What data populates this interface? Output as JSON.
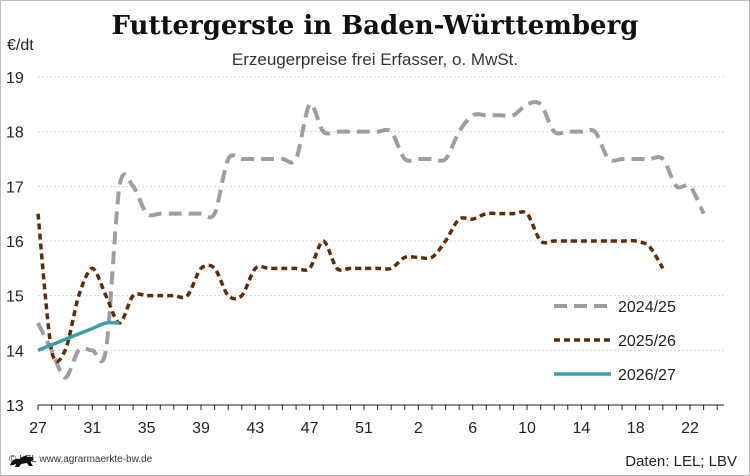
{
  "title": "Futtergerste in Baden-Württemberg",
  "subtitle": "Erzeugerpreise frei Erfasser, o. MwSt.",
  "unit": "€/dt",
  "footer": {
    "source_left": "© LEL www.agrarmaerkte-bw.de",
    "source_right": "Daten: LEL; LBV"
  },
  "colors": {
    "series_2024_25": "#9e9e9e",
    "series_2025_26": "#5c2e0a",
    "series_2026_27": "#3a9faa"
  },
  "chart_data": {
    "type": "line",
    "title": "Futtergerste in Baden-Württemberg",
    "subtitle": "Erzeugerpreise frei Erfasser, o. MwSt.",
    "ylabel": "€/dt",
    "ylim": [
      13,
      19
    ],
    "yticks": [
      13,
      14,
      15,
      16,
      17,
      18,
      19
    ],
    "x_tick_labels": [
      "27",
      "31",
      "35",
      "39",
      "43",
      "47",
      "51",
      "2",
      "6",
      "10",
      "14",
      "18",
      "22"
    ],
    "x_tick_positions": [
      0,
      4,
      8,
      12,
      16,
      20,
      24,
      28,
      32,
      36,
      40,
      44,
      48
    ],
    "xlim": [
      0,
      50.5
    ],
    "grid": true,
    "legend_position": "bottom-right",
    "series": [
      {
        "name": "2024/25",
        "style": "long-dash",
        "points": [
          [
            0,
            14.5
          ],
          [
            1,
            14.0
          ],
          [
            2,
            13.5
          ],
          [
            3,
            14.0
          ],
          [
            4,
            14.0
          ],
          [
            5,
            14.0
          ],
          [
            6,
            17.0
          ],
          [
            7,
            17.0
          ],
          [
            8,
            16.5
          ],
          [
            9,
            16.5
          ],
          [
            10,
            16.5
          ],
          [
            11,
            16.5
          ],
          [
            12,
            16.5
          ],
          [
            13,
            16.5
          ],
          [
            14,
            17.5
          ],
          [
            15,
            17.5
          ],
          [
            16,
            17.5
          ],
          [
            17,
            17.5
          ],
          [
            18,
            17.5
          ],
          [
            19,
            17.5
          ],
          [
            20,
            18.5
          ],
          [
            21,
            18.0
          ],
          [
            22,
            18.0
          ],
          [
            23,
            18.0
          ],
          [
            24,
            18.0
          ],
          [
            25,
            18.0
          ],
          [
            26,
            18.0
          ],
          [
            27,
            17.5
          ],
          [
            28,
            17.5
          ],
          [
            29,
            17.5
          ],
          [
            30,
            17.5
          ],
          [
            31,
            18.0
          ],
          [
            32,
            18.3
          ],
          [
            33,
            18.3
          ],
          [
            34,
            18.3
          ],
          [
            35,
            18.3
          ],
          [
            36,
            18.5
          ],
          [
            37,
            18.5
          ],
          [
            38,
            18.0
          ],
          [
            39,
            18.0
          ],
          [
            40,
            18.0
          ],
          [
            41,
            18.0
          ],
          [
            42,
            17.5
          ],
          [
            43,
            17.5
          ],
          [
            44,
            17.5
          ],
          [
            45,
            17.5
          ],
          [
            46,
            17.5
          ],
          [
            47,
            17.0
          ],
          [
            48,
            17.0
          ],
          [
            49,
            16.5
          ]
        ]
      },
      {
        "name": "2025/26",
        "style": "short-dash",
        "points": [
          [
            0,
            16.5
          ],
          [
            1,
            14.0
          ],
          [
            2,
            14.0
          ],
          [
            3,
            15.0
          ],
          [
            4,
            15.5
          ],
          [
            5,
            15.0
          ],
          [
            6,
            14.5
          ],
          [
            7,
            15.0
          ],
          [
            8,
            15.0
          ],
          [
            9,
            15.0
          ],
          [
            10,
            15.0
          ],
          [
            11,
            15.0
          ],
          [
            12,
            15.5
          ],
          [
            13,
            15.5
          ],
          [
            14,
            15.0
          ],
          [
            15,
            15.0
          ],
          [
            16,
            15.5
          ],
          [
            17,
            15.5
          ],
          [
            18,
            15.5
          ],
          [
            19,
            15.5
          ],
          [
            20,
            15.5
          ],
          [
            21,
            16.0
          ],
          [
            22,
            15.5
          ],
          [
            23,
            15.5
          ],
          [
            24,
            15.5
          ],
          [
            25,
            15.5
          ],
          [
            26,
            15.5
          ],
          [
            27,
            15.7
          ],
          [
            28,
            15.7
          ],
          [
            29,
            15.7
          ],
          [
            30,
            16.0
          ],
          [
            31,
            16.4
          ],
          [
            32,
            16.4
          ],
          [
            33,
            16.5
          ],
          [
            34,
            16.5
          ],
          [
            35,
            16.5
          ],
          [
            36,
            16.5
          ],
          [
            37,
            16.0
          ],
          [
            38,
            16.0
          ],
          [
            39,
            16.0
          ],
          [
            40,
            16.0
          ],
          [
            41,
            16.0
          ],
          [
            42,
            16.0
          ],
          [
            43,
            16.0
          ],
          [
            44,
            16.0
          ],
          [
            45,
            15.9
          ],
          [
            46,
            15.5
          ]
        ]
      },
      {
        "name": "2026/27",
        "style": "solid",
        "points": [
          [
            0,
            14.0
          ],
          [
            1,
            14.1
          ],
          [
            2,
            14.2
          ],
          [
            3,
            14.3
          ],
          [
            4,
            14.4
          ],
          [
            5,
            14.5
          ],
          [
            6,
            14.5
          ]
        ]
      }
    ]
  }
}
